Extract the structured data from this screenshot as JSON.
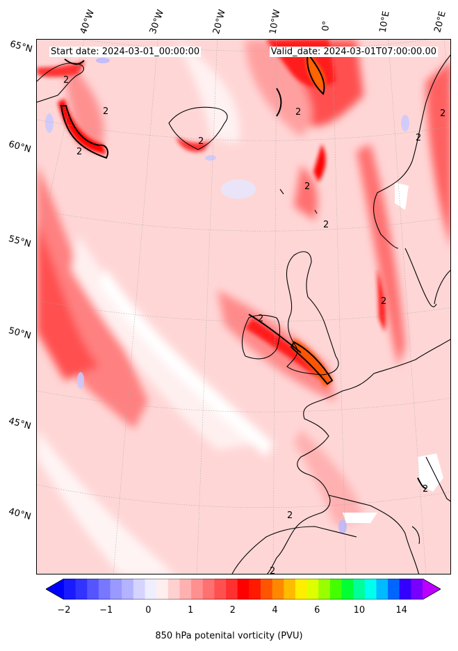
{
  "header": {
    "start_date": "Start date: 2024-03-01_00:00:00",
    "valid_date": "Valid_date: 2024-03-01T07:00:00.00"
  },
  "latitude_labels": [
    {
      "id": "65n",
      "text": "65°N"
    },
    {
      "id": "60n",
      "text": "60°N"
    },
    {
      "id": "55n",
      "text": "55°N"
    },
    {
      "id": "50n",
      "text": "50°N"
    },
    {
      "id": "45n",
      "text": "45°N"
    },
    {
      "id": "40n",
      "text": "40°N"
    }
  ],
  "longitude_labels": [
    {
      "id": "40w",
      "text": "40°W"
    },
    {
      "id": "30w",
      "text": "30°W"
    },
    {
      "id": "20w",
      "text": "20°W"
    },
    {
      "id": "10w",
      "text": "10°W"
    },
    {
      "id": "0",
      "text": "0°"
    },
    {
      "id": "10e",
      "text": "10°E"
    },
    {
      "id": "20e",
      "text": "20°E"
    }
  ],
  "contour_label": "2",
  "colorbar": {
    "label": "850 hPa potenital vorticity (PVU)",
    "tick_labels": [
      "−2",
      "−1",
      "0",
      "1",
      "2",
      "4",
      "6",
      "10",
      "14"
    ],
    "colors": [
      "#1a1aff",
      "#3333ff",
      "#5555ff",
      "#7777ff",
      "#9999ff",
      "#b3b3ff",
      "#d4d4ff",
      "#eeeeff",
      "#ffeeee",
      "#ffd0d0",
      "#ffb0b0",
      "#ff9090",
      "#ff7070",
      "#ff5050",
      "#ff3030",
      "#ff0000",
      "#ff1a00",
      "#ff5500",
      "#ff8800",
      "#ffbb00",
      "#ffee00",
      "#ddff00",
      "#99ff00",
      "#44ff00",
      "#00ff33",
      "#00ff99",
      "#00ffee",
      "#00bbff",
      "#0066ff",
      "#3300ff",
      "#7700ff"
    ],
    "extend_low": "#0000ff",
    "extend_high": "#bb00ff"
  }
}
